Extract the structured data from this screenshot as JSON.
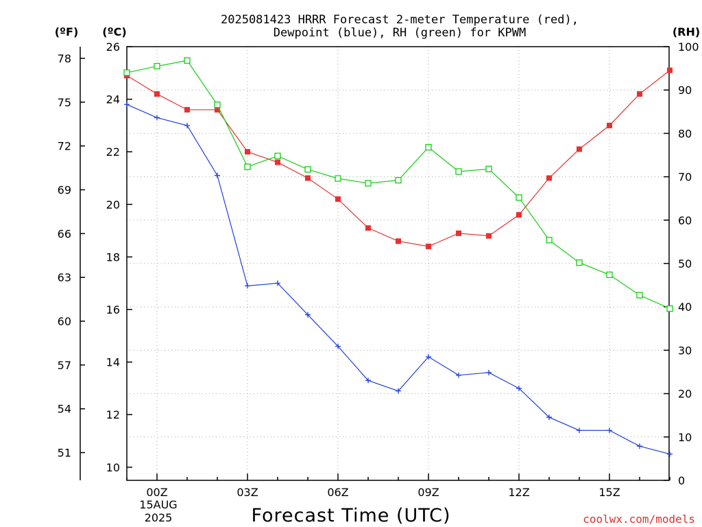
{
  "title": {
    "line1": "2025081423 HRRR Forecast 2-meter Temperature (red),",
    "line2": "Dewpoint (blue), RH (green) for KPWM"
  },
  "units": {
    "fahrenheit": "(ºF)",
    "celsius": "(ºC)",
    "rh": "(RH)"
  },
  "xlabel": "Forecast Time (UTC)",
  "credit": "coolwx.com/models",
  "date_label": {
    "day": "15AUG",
    "year": "2025"
  },
  "colors": {
    "temperature": "#e83030",
    "dewpoint": "#2040e0",
    "rh": "#10d010"
  },
  "chart_data": {
    "type": "line",
    "x": [
      "23Z",
      "00Z",
      "01Z",
      "02Z",
      "03Z",
      "04Z",
      "05Z",
      "06Z",
      "07Z",
      "08Z",
      "09Z",
      "10Z",
      "11Z",
      "12Z",
      "13Z",
      "14Z",
      "15Z",
      "16Z",
      "17Z"
    ],
    "x_tick_labels": [
      "00Z",
      "03Z",
      "06Z",
      "09Z",
      "12Z",
      "15Z"
    ],
    "series": [
      {
        "name": "Temperature",
        "axis": "celsius",
        "marker": "filled-square",
        "values": [
          24.9,
          24.2,
          23.6,
          23.6,
          22.0,
          21.6,
          21.0,
          20.2,
          19.1,
          18.6,
          18.4,
          18.9,
          18.8,
          19.6,
          21.0,
          22.1,
          23.0,
          24.2,
          25.1
        ]
      },
      {
        "name": "Dewpoint",
        "axis": "celsius",
        "marker": "plus",
        "values": [
          23.8,
          23.3,
          23.0,
          21.1,
          16.9,
          17.0,
          15.8,
          14.6,
          13.3,
          12.9,
          14.2,
          13.5,
          13.6,
          13.0,
          11.9,
          11.4,
          11.4,
          10.8,
          10.5
        ]
      },
      {
        "name": "RH",
        "axis": "rh",
        "marker": "open-square",
        "values": [
          94,
          95.5,
          96.8,
          86.6,
          72.3,
          74.8,
          71.7,
          69.6,
          68.5,
          69.2,
          76.8,
          71.2,
          71.8,
          65.2,
          55.4,
          50.2,
          47.4,
          42.7,
          39.6
        ]
      }
    ],
    "y_left_celsius": {
      "range": [
        9.5,
        26
      ],
      "ticks": [
        10,
        12,
        14,
        16,
        18,
        20,
        22,
        24,
        26
      ]
    },
    "y_left_fahrenheit": {
      "ticks": [
        51,
        54,
        57,
        60,
        63,
        66,
        69,
        72,
        75,
        78
      ]
    },
    "y_right_rh": {
      "range": [
        0,
        100
      ],
      "ticks": [
        0,
        10,
        20,
        30,
        40,
        50,
        60,
        70,
        80,
        90,
        100
      ]
    },
    "grid": true
  }
}
